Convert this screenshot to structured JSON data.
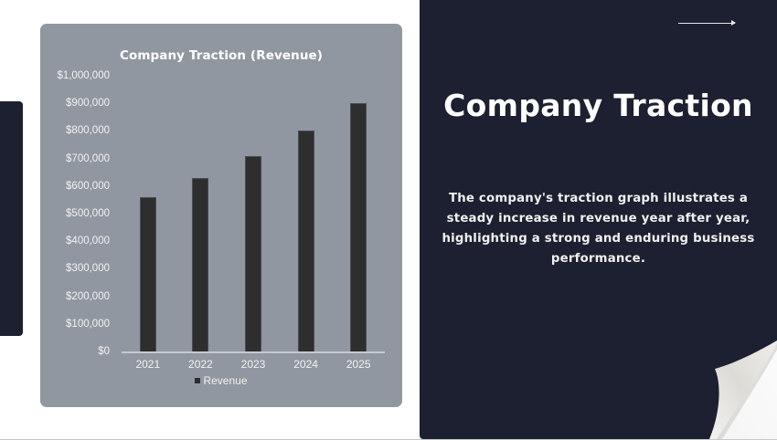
{
  "slide": {
    "title": "Company Traction",
    "description": "The company's traction graph illustrates a steady increase in revenue year after year, highlighting a strong and enduring business performance.",
    "arrow_icon": "long-right-arrow",
    "colors": {
      "panel_bg": "#1c2030",
      "chart_card_bg": "#9097a0",
      "bar": "#2e2e2e",
      "text_light": "#ffffff"
    }
  },
  "chart": {
    "title": "Company Traction (Revenue)",
    "y_ticks": [
      "$1,000,000",
      "$900,000",
      "$800,000",
      "$700,000",
      "$600,000",
      "$500,000",
      "$400,000",
      "$300,000",
      "$200,000",
      "$100,000",
      "$0"
    ],
    "categories": [
      "2021",
      "2022",
      "2023",
      "2024",
      "2025"
    ],
    "legend": "Revenue"
  },
  "chart_data": {
    "type": "bar",
    "title": "Company Traction (Revenue)",
    "categories": [
      "2021",
      "2022",
      "2023",
      "2024",
      "2025"
    ],
    "series": [
      {
        "name": "Revenue",
        "values": [
          560000,
          630000,
          710000,
          800000,
          900000
        ],
        "color": "#2e2e2e"
      }
    ],
    "xlabel": "",
    "ylabel": "",
    "ylim": [
      0,
      1000000
    ],
    "y_tick_step": 100000,
    "grid": false,
    "legend_position": "bottom"
  }
}
